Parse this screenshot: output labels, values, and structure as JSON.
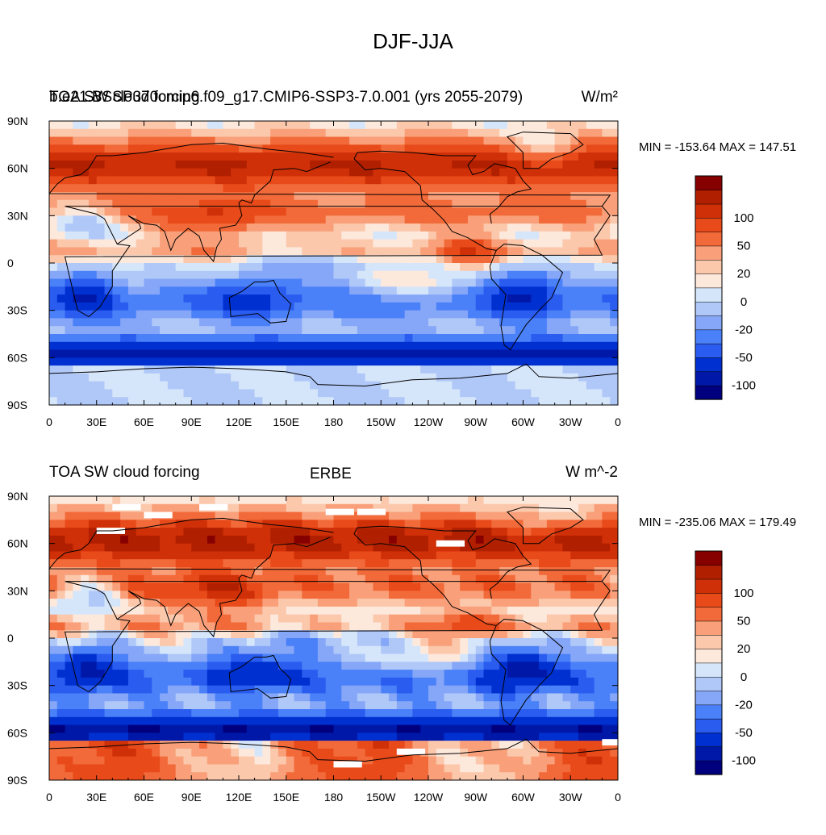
{
  "title": "DJF-JJA",
  "palette": [
    "#00007f",
    "#0018a8",
    "#0030d0",
    "#2a5cf0",
    "#4a80f8",
    "#86a6f8",
    "#b0c8f8",
    "#d6e6fa",
    "#fde8dc",
    "#fbc8ac",
    "#f9a07a",
    "#f26a3a",
    "#e84a1a",
    "#d03008",
    "#b02000",
    "#870000"
  ],
  "colorbar_labels": [
    "100",
    "50",
    "20",
    "0",
    "-20",
    "-50",
    "-100"
  ],
  "colorbar_label_levels": [
    13,
    11,
    9,
    7,
    5,
    3,
    1
  ],
  "chart_data": [
    {
      "type": "heatmap",
      "left_title": "TOA SW cloud forcing",
      "center_title": "b.e21.BSSP370cmip6.f09_g17.CMIP6-SSP3-7.0.001 (yrs 2055-2079)",
      "units": "W/m²",
      "min_max_text": "MIN = -153.64 MAX = 147.51",
      "min": -153.64,
      "max": 147.51,
      "x_tick_labels": [
        "0",
        "30E",
        "60E",
        "90E",
        "120E",
        "150E",
        "180",
        "150W",
        "120W",
        "90W",
        "60W",
        "30W",
        "0"
      ],
      "y_tick_labels": [
        "90N",
        "60N",
        "30N",
        "0",
        "30S",
        "60S",
        "90S"
      ],
      "xlim": [
        0,
        360
      ],
      "ylim": [
        -90,
        90
      ],
      "colorbar_labels": [
        "100",
        "50",
        "20",
        "0",
        "-20",
        "-50",
        "-100"
      ]
    },
    {
      "type": "heatmap",
      "left_title": "TOA SW cloud forcing",
      "center_title": "ERBE",
      "units": "W m^-2",
      "min_max_text": "MIN = -235.06 MAX = 179.49",
      "min": -235.06,
      "max": 179.49,
      "x_tick_labels": [
        "0",
        "30E",
        "60E",
        "90E",
        "120E",
        "150E",
        "180",
        "150W",
        "120W",
        "90W",
        "60W",
        "30W",
        "0"
      ],
      "y_tick_labels": [
        "90N",
        "60N",
        "30N",
        "0",
        "30S",
        "60S",
        "90S"
      ],
      "xlim": [
        0,
        360
      ],
      "ylim": [
        -90,
        90
      ],
      "colorbar_labels": [
        "100",
        "50",
        "20",
        "0",
        "-20",
        "-50",
        "-100"
      ]
    }
  ]
}
